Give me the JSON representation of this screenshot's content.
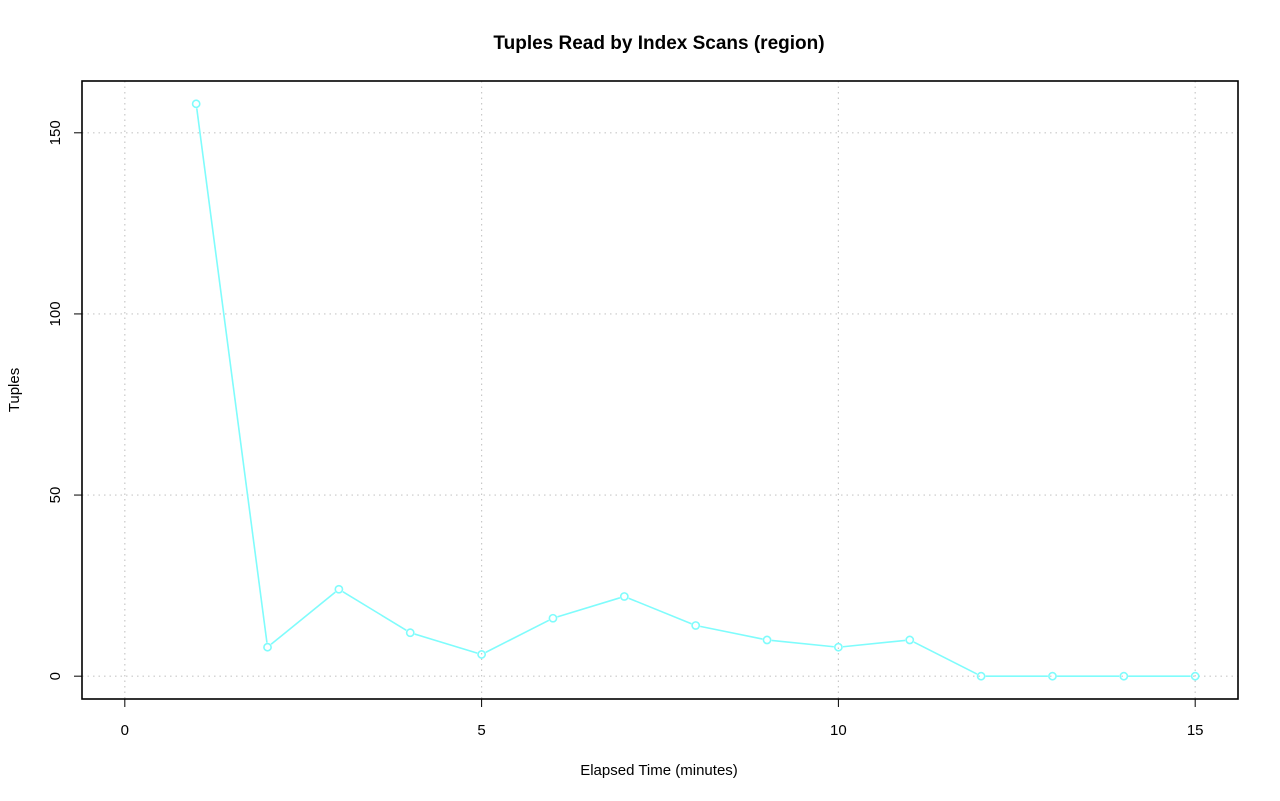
{
  "chart_data": {
    "type": "line",
    "title": "Tuples Read by Index Scans (region)",
    "xlabel": "Elapsed Time (minutes)",
    "ylabel": "Tuples",
    "xlim": [
      -0.6,
      15.6
    ],
    "ylim": [
      -6.3,
      164.3
    ],
    "x_ticks": [
      0,
      5,
      10,
      15
    ],
    "y_ticks": [
      0,
      50,
      100,
      150
    ],
    "grid": true,
    "series": [
      {
        "color": "#7ffcfc",
        "marker": "open-circle",
        "x": [
          1,
          2,
          3,
          4,
          5,
          6,
          7,
          8,
          9,
          10,
          11,
          12,
          13,
          14,
          15
        ],
        "y": [
          158,
          8,
          24,
          12,
          6,
          16,
          22,
          14,
          10,
          8,
          10,
          0,
          0,
          0,
          0
        ]
      }
    ]
  }
}
